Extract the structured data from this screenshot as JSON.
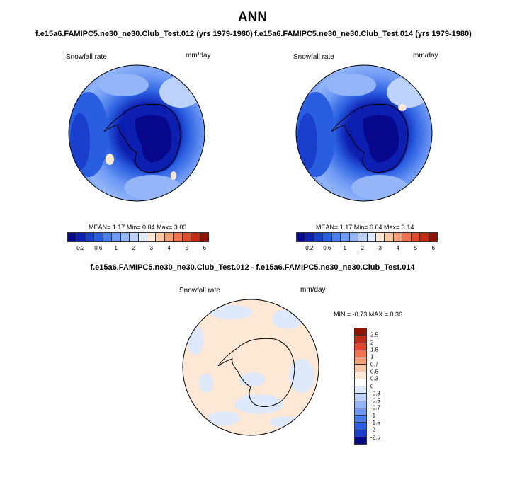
{
  "title": "ANN",
  "panels": {
    "left": {
      "title": "f.e15a6.FAMIPC5.ne30_ne30.Club_Test.012 (yrs 1979-1980)",
      "variable": "Snowfall rate",
      "units": "mm/day",
      "stats": "MEAN=   1.17  Min=   0.04  Max=   3.03"
    },
    "right": {
      "title": "f.e15a6.FAMIPC5.ne30_ne30.Club_Test.014 (yrs 1979-1980)",
      "variable": "Snowfall rate",
      "units": "mm/day",
      "stats": "MEAN=   1.17  Min=   0.04  Max=   3.14"
    },
    "diff": {
      "title": "f.e15a6.FAMIPC5.ne30_ne30.Club_Test.012 - f.e15a6.FAMIPC5.ne30_ne30.Club_Test.014",
      "variable": "Snowfall rate",
      "units": "mm/day",
      "stats": "MIN =  -0.73 MAX =   0.36"
    }
  },
  "colorbar_main": {
    "colors": [
      "#08088c",
      "#0c1fb0",
      "#1a3fcc",
      "#2a5ee0",
      "#4a7ef0",
      "#6e9af5",
      "#94b6f8",
      "#bcd2fb",
      "#dfe9fc",
      "#fde8d6",
      "#f9c8a8",
      "#f4a07a",
      "#ef7350",
      "#e04a2c",
      "#c42a14",
      "#8e1404"
    ],
    "ticks": [
      "0.2",
      "0.6",
      "1",
      "2",
      "3",
      "4",
      "5",
      "6"
    ]
  },
  "colorbar_diff": {
    "colors": [
      "#8e1404",
      "#c42a14",
      "#e04a2c",
      "#ef7350",
      "#f4a07a",
      "#f9c8a8",
      "#fde8d6",
      "#ffffff",
      "#dfe9fc",
      "#bcd2fb",
      "#94b6f8",
      "#6e9af5",
      "#4a7ef0",
      "#2a5ee0",
      "#1a3fcc",
      "#08088c"
    ],
    "ticks": [
      "2.5",
      "2",
      "1.5",
      "1",
      "0.7",
      "0.5",
      "0.3",
      "0",
      "-0.3",
      "-0.5",
      "-0.7",
      "-1",
      "-1.5",
      "-2",
      "-2.5"
    ]
  }
}
